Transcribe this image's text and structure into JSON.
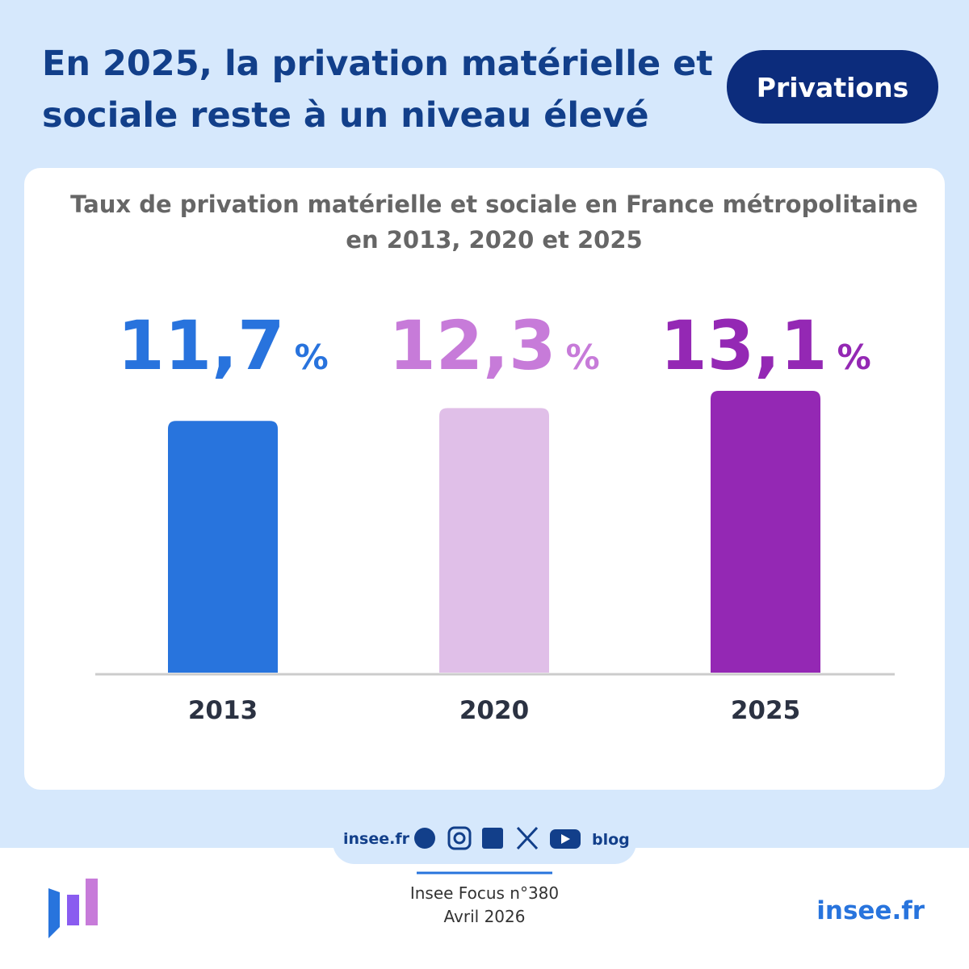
{
  "header": {
    "title_lines": [
      "En 2025, la privation matérielle et",
      "sociale reste à un niveau élevé"
    ],
    "badge": "Privations"
  },
  "chart_data": {
    "type": "bar",
    "title_lines": [
      "Taux de privation matérielle et sociale en France métropolitaine",
      "en 2013, 2020 et 2025"
    ],
    "categories": [
      "2013",
      "2020",
      "2025"
    ],
    "values": [
      11.7,
      12.3,
      13.1
    ],
    "value_labels": [
      "11,7",
      "12,3",
      "13,1"
    ],
    "value_unit": "%",
    "colors": [
      "#2874dd",
      "#e0bfe8",
      "#9428b4"
    ],
    "label_colors": [
      "#2873dd",
      "#c77bd9",
      "#9428b4"
    ]
  },
  "footer": {
    "social_site": "insee.fr",
    "blog": "blog",
    "publication": "Insee Focus n°380",
    "date": "Avril 2026",
    "site": "insee.fr"
  }
}
